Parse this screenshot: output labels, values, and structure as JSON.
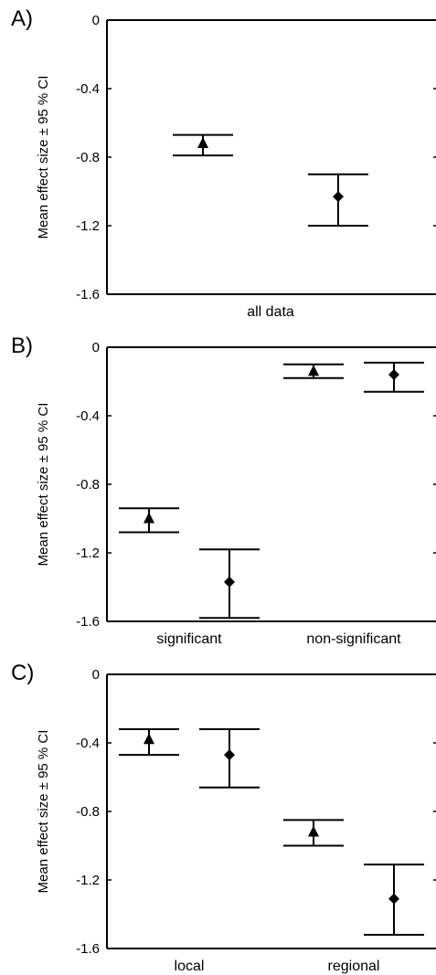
{
  "chart_data": [
    {
      "type": "scatter",
      "panel_label": "A)",
      "ylabel": "Mean effect size ± 95 % CI",
      "ylim": [
        -1.6,
        0
      ],
      "yticks": [
        "0",
        "-0.4",
        "-0.8",
        "-1.2",
        "-1.6"
      ],
      "categories": [
        "all data"
      ],
      "series": [
        {
          "marker": "triangle",
          "points": [
            {
              "x": "all data",
              "y": -0.72,
              "lo": -0.79,
              "hi": -0.67
            }
          ]
        },
        {
          "marker": "diamond",
          "points": [
            {
              "x": "all data",
              "y": -1.03,
              "lo": -1.2,
              "hi": -0.9
            }
          ]
        }
      ]
    },
    {
      "type": "scatter",
      "panel_label": "B)",
      "ylabel": "Mean effect size ± 95 % CI",
      "ylim": [
        -1.6,
        0
      ],
      "yticks": [
        "0",
        "-0.4",
        "-0.8",
        "-1.2",
        "-1.6"
      ],
      "categories": [
        "significant",
        "non-significant"
      ],
      "series": [
        {
          "marker": "triangle",
          "points": [
            {
              "x": "significant",
              "y": -1.0,
              "lo": -1.08,
              "hi": -0.94
            },
            {
              "x": "non-significant",
              "y": -0.14,
              "lo": -0.18,
              "hi": -0.1
            }
          ]
        },
        {
          "marker": "diamond",
          "points": [
            {
              "x": "significant",
              "y": -1.37,
              "lo": -1.58,
              "hi": -1.18
            },
            {
              "x": "non-significant",
              "y": -0.16,
              "lo": -0.26,
              "hi": -0.09
            }
          ]
        }
      ]
    },
    {
      "type": "scatter",
      "panel_label": "C)",
      "ylabel": "Mean effect size ± 95 % CI",
      "ylim": [
        -1.6,
        0
      ],
      "yticks": [
        "0",
        "-0.4",
        "-0.8",
        "-1.2",
        "-1.6"
      ],
      "categories": [
        "local",
        "regional"
      ],
      "series": [
        {
          "marker": "triangle",
          "points": [
            {
              "x": "local",
              "y": -0.38,
              "lo": -0.47,
              "hi": -0.32
            },
            {
              "x": "regional",
              "y": -0.92,
              "lo": -1.0,
              "hi": -0.85
            }
          ]
        },
        {
          "marker": "diamond",
          "points": [
            {
              "x": "local",
              "y": -0.47,
              "lo": -0.66,
              "hi": -0.32
            },
            {
              "x": "regional",
              "y": -1.31,
              "lo": -1.52,
              "hi": -1.11
            }
          ]
        }
      ]
    }
  ]
}
